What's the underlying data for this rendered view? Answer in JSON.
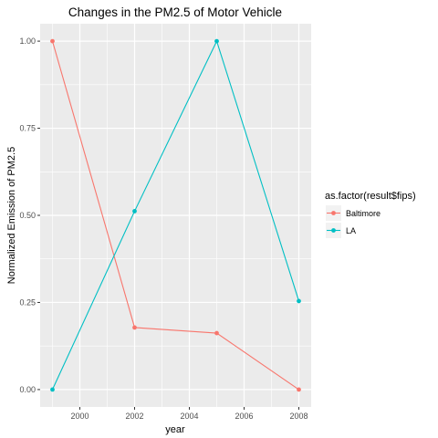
{
  "chart_data": {
    "type": "line",
    "title": "Changes in the PM2.5 of Motor Vehicle",
    "xlabel": "year",
    "ylabel": "Normalized Emission of PM2.5",
    "xlim": [
      1998.55,
      2008.45
    ],
    "ylim": [
      -0.05,
      1.05
    ],
    "x_ticks": [
      2000,
      2002,
      2004,
      2006,
      2008
    ],
    "x_tick_labels": [
      "2000",
      "2002",
      "2004",
      "2006",
      "2008"
    ],
    "y_ticks": [
      0,
      0.25,
      0.5,
      0.75,
      1.0
    ],
    "y_tick_labels": [
      "0.00",
      "0.25",
      "0.50",
      "0.75",
      "1.00"
    ],
    "grid": true,
    "legend": {
      "title": "as.factor(result$fips)",
      "placement": "right"
    },
    "series": [
      {
        "name": "Baltimore",
        "color": "#F8766D",
        "x": [
          1999,
          2002,
          2005,
          2008
        ],
        "y": [
          1.0,
          0.178,
          0.162,
          0.0
        ]
      },
      {
        "name": "LA",
        "color": "#00BFC4",
        "x": [
          1999,
          2002,
          2005,
          2008
        ],
        "y": [
          0.0,
          0.512,
          1.0,
          0.254
        ]
      }
    ],
    "panel_background": "#EBEBEB",
    "grid_color": "#FFFFFF"
  }
}
